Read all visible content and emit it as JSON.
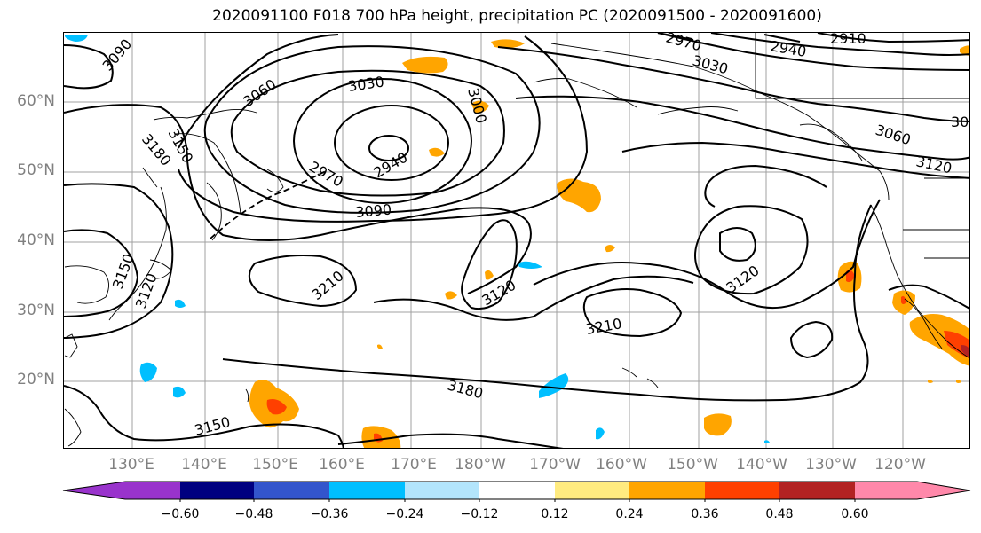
{
  "title": "2020091100 F018 700 hPa height, precipitation PC (2020091500 - 2020091600)",
  "lat_labels": [
    "60°N",
    "50°N",
    "40°N",
    "30°N",
    "20°N"
  ],
  "lon_labels": [
    "130°E",
    "140°E",
    "150°E",
    "160°E",
    "170°E",
    "180°W",
    "170°W",
    "160°W",
    "150°W",
    "140°W",
    "130°W",
    "120°W"
  ],
  "contour_labels": [
    "3090",
    "3060",
    "3030",
    "3000",
    "3180",
    "3150",
    "2970",
    "2940",
    "3090",
    "3210",
    "3120",
    "3210",
    "3180",
    "3150",
    "3120",
    "2970",
    "3030",
    "2940",
    "2910",
    "3060",
    "3120",
    "30",
    "3150",
    "3120"
  ],
  "colorbar": {
    "ticks": [
      "−0.60",
      "−0.48",
      "−0.36",
      "−0.24",
      "−0.12",
      "0.12",
      "0.24",
      "0.36",
      "0.48",
      "0.60"
    ],
    "colors": [
      "#9933cc",
      "#000080",
      "#3355cc",
      "#00bfff",
      "#b3e5fc",
      "#ffffff",
      "#ffeb80",
      "#ffa500",
      "#ff4000",
      "#b22222",
      "#ff88aa"
    ]
  }
}
